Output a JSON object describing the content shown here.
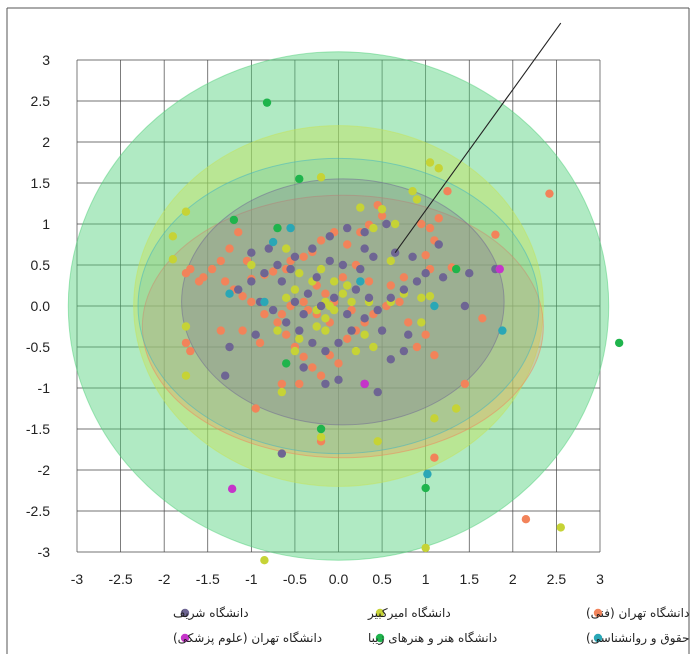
{
  "chart_data": {
    "type": "scatter",
    "xlim": [
      -3,
      3
    ],
    "ylim": [
      -3,
      3
    ],
    "grid": true,
    "x_ticks": [
      "-3",
      "-2.5",
      "-2",
      "-1.5",
      "-1",
      "-0.5",
      "0.0",
      "0.5",
      "1",
      "1.5",
      "2",
      "2.5",
      "3"
    ],
    "y_ticks": [
      "3",
      "2.5",
      "2",
      "1.5",
      "1",
      "0.5",
      "0.0",
      "-0.5",
      "-1",
      "-1.5",
      "-2",
      "-2.5",
      "-3"
    ],
    "legend_position": "bottom",
    "series": [
      {
        "name": "دانشگاه تهران (فنی)",
        "color": "#f2835a",
        "points": [
          [
            2.42,
            1.37
          ],
          [
            1.8,
            0.87
          ],
          [
            1.25,
            1.4
          ],
          [
            1.15,
            1.07
          ],
          [
            1.1,
            0.8
          ],
          [
            1.0,
            0.62
          ],
          [
            1.05,
            0.45
          ],
          [
            1.3,
            0.47
          ],
          [
            0.95,
            1.0
          ],
          [
            0.45,
            1.23
          ],
          [
            0.5,
            1.1
          ],
          [
            0.35,
            0.99
          ],
          [
            0.25,
            0.9
          ],
          [
            0.1,
            0.75
          ],
          [
            -0.05,
            0.9
          ],
          [
            -0.2,
            0.8
          ],
          [
            -0.3,
            0.66
          ],
          [
            -0.4,
            0.6
          ],
          [
            -0.55,
            0.55
          ],
          [
            -0.6,
            0.45
          ],
          [
            -0.75,
            0.42
          ],
          [
            -0.85,
            0.38
          ],
          [
            -1.0,
            0.33
          ],
          [
            -1.05,
            0.55
          ],
          [
            -1.15,
            0.9
          ],
          [
            -1.25,
            0.7
          ],
          [
            -1.35,
            0.55
          ],
          [
            -1.45,
            0.45
          ],
          [
            -1.55,
            0.35
          ],
          [
            -1.7,
            0.45
          ],
          [
            -1.75,
            0.4
          ],
          [
            -1.6,
            0.3
          ],
          [
            -1.3,
            0.3
          ],
          [
            -1.2,
            0.2
          ],
          [
            -1.1,
            0.12
          ],
          [
            -1.0,
            0.05
          ],
          [
            -0.85,
            -0.1
          ],
          [
            -0.7,
            -0.2
          ],
          [
            -0.6,
            -0.35
          ],
          [
            -0.5,
            -0.5
          ],
          [
            -0.4,
            -0.62
          ],
          [
            -0.3,
            -0.75
          ],
          [
            -0.2,
            -0.85
          ],
          [
            -0.1,
            -0.6
          ],
          [
            0.0,
            -0.7
          ],
          [
            0.1,
            -0.4
          ],
          [
            0.2,
            -0.3
          ],
          [
            0.3,
            -0.2
          ],
          [
            0.4,
            -0.1
          ],
          [
            0.55,
            0.0
          ],
          [
            0.7,
            0.05
          ],
          [
            0.8,
            -0.2
          ],
          [
            0.9,
            -0.5
          ],
          [
            1.0,
            -0.35
          ],
          [
            1.1,
            -0.6
          ],
          [
            1.45,
            -0.95
          ],
          [
            1.65,
            -0.15
          ],
          [
            -1.7,
            -0.55
          ],
          [
            -1.75,
            -0.45
          ],
          [
            -1.35,
            -0.3
          ],
          [
            -0.95,
            -1.25
          ],
          [
            -0.65,
            -0.95
          ],
          [
            -0.45,
            -0.95
          ],
          [
            -0.2,
            -1.65
          ],
          [
            0.15,
            -0.05
          ],
          [
            -0.05,
            0.05
          ],
          [
            -0.15,
            0.15
          ],
          [
            -0.25,
            0.25
          ],
          [
            -0.4,
            0.05
          ],
          [
            -0.55,
            0.0
          ],
          [
            -0.65,
            -0.1
          ],
          [
            1.1,
            -1.85
          ],
          [
            2.15,
            -2.6
          ],
          [
            0.6,
            0.25
          ],
          [
            0.35,
            0.3
          ],
          [
            0.2,
            0.5
          ],
          [
            0.05,
            0.35
          ],
          [
            -0.1,
            -0.2
          ],
          [
            -0.25,
            -0.1
          ],
          [
            -0.35,
            -0.05
          ],
          [
            -0.9,
            -0.45
          ],
          [
            -1.1,
            -0.3
          ],
          [
            1.05,
            0.95
          ],
          [
            0.75,
            0.35
          ]
        ]
      },
      {
        "name": "دانشگاه امیرکبیر",
        "color": "#c6d336",
        "points": [
          [
            1.05,
            1.75
          ],
          [
            1.15,
            1.68
          ],
          [
            0.85,
            1.4
          ],
          [
            0.5,
            1.18
          ],
          [
            0.65,
            1.0
          ],
          [
            0.4,
            0.95
          ],
          [
            0.25,
            1.2
          ],
          [
            -0.2,
            1.57
          ],
          [
            -1.75,
            1.15
          ],
          [
            -1.9,
            0.85
          ],
          [
            -1.9,
            0.57
          ],
          [
            -0.45,
            0.4
          ],
          [
            -0.3,
            0.3
          ],
          [
            -0.5,
            0.2
          ],
          [
            -0.6,
            0.1
          ],
          [
            0.15,
            0.05
          ],
          [
            0.05,
            0.15
          ],
          [
            -0.05,
            -0.05
          ],
          [
            -0.15,
            -0.15
          ],
          [
            -0.25,
            -0.25
          ],
          [
            0.3,
            -0.35
          ],
          [
            0.4,
            -0.5
          ],
          [
            -0.5,
            -0.55
          ],
          [
            -0.45,
            -0.4
          ],
          [
            -0.25,
            -0.05
          ],
          [
            -0.1,
            0.0
          ],
          [
            -0.15,
            -0.3
          ],
          [
            0.6,
            0.05
          ],
          [
            0.75,
            0.15
          ],
          [
            0.95,
            0.1
          ],
          [
            1.05,
            0.12
          ],
          [
            1.35,
            0.45
          ],
          [
            1.35,
            -1.25
          ],
          [
            1.1,
            -1.37
          ],
          [
            0.45,
            -1.65
          ],
          [
            -0.2,
            -1.6
          ],
          [
            -1.75,
            -0.25
          ],
          [
            -1.75,
            -0.85
          ],
          [
            -0.65,
            -1.05
          ],
          [
            0.2,
            -0.55
          ],
          [
            -0.3,
            -0.45
          ],
          [
            -0.15,
            0.05
          ],
          [
            -0.05,
            0.3
          ],
          [
            0.1,
            0.25
          ],
          [
            -0.6,
            0.7
          ],
          [
            -0.7,
            -0.3
          ],
          [
            -1.0,
            0.5
          ],
          [
            0.9,
            1.3
          ],
          [
            0.95,
            -0.2
          ],
          [
            0.6,
            0.55
          ],
          [
            0.35,
            0.05
          ],
          [
            -0.2,
            0.45
          ],
          [
            1.0,
            -2.95
          ],
          [
            2.55,
            -2.7
          ],
          [
            -0.85,
            -3.1
          ]
        ]
      },
      {
        "name": "دانشگاه شریف",
        "color": "#6e6593",
        "points": [
          [
            0.55,
            1.0
          ],
          [
            0.3,
            0.9
          ],
          [
            0.1,
            0.95
          ],
          [
            -0.1,
            0.85
          ],
          [
            -0.3,
            0.7
          ],
          [
            -0.5,
            0.6
          ],
          [
            -0.7,
            0.5
          ],
          [
            -0.85,
            0.4
          ],
          [
            -1.0,
            0.3
          ],
          [
            -1.15,
            0.2
          ],
          [
            -0.9,
            0.05
          ],
          [
            -0.75,
            -0.05
          ],
          [
            -0.6,
            -0.2
          ],
          [
            -0.45,
            -0.3
          ],
          [
            -0.3,
            -0.45
          ],
          [
            -0.15,
            -0.55
          ],
          [
            0.0,
            -0.45
          ],
          [
            0.15,
            -0.3
          ],
          [
            0.3,
            -0.15
          ],
          [
            0.45,
            -0.05
          ],
          [
            0.6,
            0.1
          ],
          [
            0.75,
            0.2
          ],
          [
            0.9,
            0.3
          ],
          [
            1.0,
            0.4
          ],
          [
            1.2,
            0.35
          ],
          [
            1.45,
            0.0
          ],
          [
            1.5,
            0.4
          ],
          [
            1.8,
            0.45
          ],
          [
            0.85,
            0.6
          ],
          [
            0.65,
            0.65
          ],
          [
            0.4,
            0.6
          ],
          [
            0.25,
            0.45
          ],
          [
            0.05,
            0.5
          ],
          [
            -0.1,
            0.55
          ],
          [
            -0.25,
            0.35
          ],
          [
            -0.35,
            0.15
          ],
          [
            -0.5,
            0.05
          ],
          [
            -0.65,
            0.3
          ],
          [
            -0.95,
            -0.35
          ],
          [
            -1.25,
            -0.5
          ],
          [
            -1.3,
            -0.85
          ],
          [
            -0.65,
            -1.8
          ],
          [
            -0.4,
            -0.75
          ],
          [
            -0.15,
            -0.95
          ],
          [
            0.0,
            -0.9
          ],
          [
            0.3,
            -0.95
          ],
          [
            0.45,
            -1.05
          ],
          [
            0.6,
            -0.65
          ],
          [
            0.75,
            -0.55
          ],
          [
            0.8,
            -0.35
          ],
          [
            0.5,
            -0.3
          ],
          [
            0.35,
            0.1
          ],
          [
            0.2,
            0.2
          ],
          [
            0.1,
            -0.1
          ],
          [
            -0.05,
            0.1
          ],
          [
            -0.2,
            0.0
          ],
          [
            -0.4,
            -0.1
          ],
          [
            -0.55,
            0.45
          ],
          [
            -0.8,
            0.7
          ],
          [
            -1.0,
            0.65
          ],
          [
            1.15,
            0.75
          ],
          [
            0.3,
            0.7
          ]
        ]
      },
      {
        "name": "دانشگاه هنر و هنرهای زیبا",
        "color": "#1fb44c",
        "points": [
          [
            -0.82,
            2.48
          ],
          [
            -0.45,
            1.55
          ],
          [
            -1.2,
            1.05
          ],
          [
            1.35,
            0.45
          ],
          [
            -0.6,
            -0.7
          ],
          [
            -0.2,
            -1.5
          ],
          [
            1.0,
            -2.22
          ],
          [
            3.22,
            -0.45
          ],
          [
            -0.7,
            0.95
          ]
        ]
      },
      {
        "name": "دانشگاه تهران (حقوق و روانشناسی)",
        "color": "#2aa7b6",
        "points": [
          [
            -0.75,
            0.78
          ],
          [
            -0.55,
            0.95
          ],
          [
            -1.25,
            0.15
          ],
          [
            -0.85,
            0.05
          ],
          [
            1.1,
            0.0
          ],
          [
            1.88,
            -0.3
          ],
          [
            1.02,
            -2.05
          ],
          [
            0.25,
            0.3
          ]
        ]
      },
      {
        "name": "دانشگاه تهران (علوم پزشکی)",
        "color": "#c535c9",
        "points": [
          [
            -1.22,
            -2.23
          ],
          [
            1.85,
            0.45
          ],
          [
            0.3,
            -0.95
          ]
        ]
      }
    ],
    "ellipses": [
      {
        "cx": 0.0,
        "cy": 0.0,
        "rx": 3.1,
        "ry": 3.1,
        "color": "#4fd07a",
        "opacity": 0.45
      },
      {
        "cx": 0.0,
        "cy": 0.0,
        "rx": 2.35,
        "ry": 2.2,
        "color": "#c6e35a",
        "opacity": 0.45
      },
      {
        "cx": 0.05,
        "cy": -0.25,
        "rx": 2.3,
        "ry": 1.6,
        "color": "#f2835a",
        "opacity": 0.25
      },
      {
        "cx": 0.0,
        "cy": 0.0,
        "rx": 2.3,
        "ry": 1.8,
        "color": "#3bb3c3",
        "opacity": 0.2
      },
      {
        "cx": 0.05,
        "cy": 0.05,
        "rx": 1.85,
        "ry": 1.5,
        "color": "#6e6593",
        "opacity": 0.25
      }
    ],
    "annotation_line": {
      "from": [
        0.65,
        0.65
      ],
      "to": [
        2.55,
        3.45
      ]
    }
  }
}
